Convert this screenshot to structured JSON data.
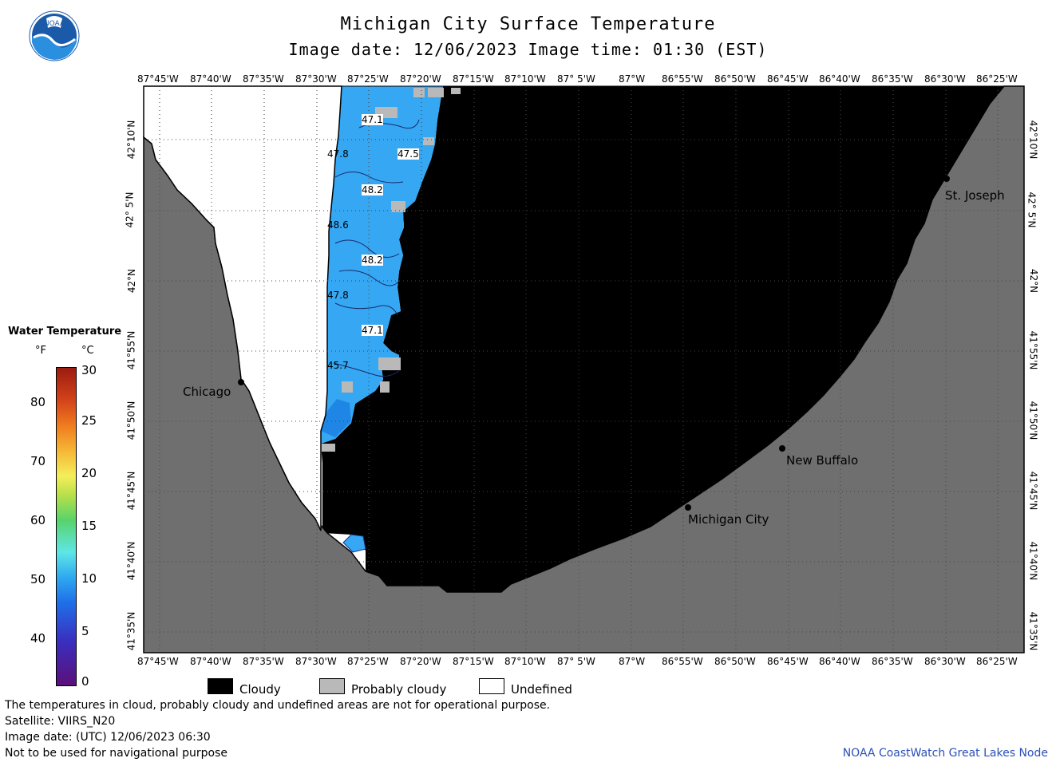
{
  "header": {
    "title": "Michigan City Surface Temperature",
    "subtitle": "Image date: 12/06/2023    Image time: 01:30 (EST)",
    "logo_text": "NOAA"
  },
  "map": {
    "longitude_labels": [
      "87°45'W",
      "87°40'W",
      "87°35'W",
      "87°30'W",
      "87°25'W",
      "87°20'W",
      "87°15'W",
      "87°10'W",
      "87° 5'W",
      "87°W",
      "86°55'W",
      "86°50'W",
      "86°45'W",
      "86°40'W",
      "86°35'W",
      "86°30'W",
      "86°25'W"
    ],
    "latitude_labels": [
      "42°10'N",
      "42° 5'N",
      "42°N",
      "41°55'N",
      "41°50'N",
      "41°45'N",
      "41°40'N",
      "41°35'N"
    ],
    "cities": [
      {
        "name": "Chicago"
      },
      {
        "name": "St. Joseph"
      },
      {
        "name": "New Buffalo"
      },
      {
        "name": "Michigan City"
      }
    ],
    "isotherm_labels": [
      "47.1",
      "47.8",
      "47.5",
      "48.2",
      "48.6",
      "48.2",
      "47.8",
      "47.1",
      "45.7"
    ],
    "colors": {
      "land": "#6f6f6f",
      "cloudy": "#000000",
      "probably_cloudy": "#b9b9b9",
      "undefined": "#ffffff",
      "water_warm": "#35a7f3",
      "water_cool": "#1f86e6"
    }
  },
  "legend": {
    "title": "Water Temperature",
    "unit_f": "°F",
    "unit_c": "°C",
    "f_ticks": [
      "80",
      "70",
      "60",
      "50",
      "40"
    ],
    "c_ticks": [
      "30",
      "25",
      "20",
      "15",
      "10",
      "5",
      "0"
    ]
  },
  "key": {
    "cloudy": "Cloudy",
    "probably_cloudy": "Probably cloudy",
    "undefined": "Undefined"
  },
  "footer": {
    "line1": "The temperatures in cloud, probably cloudy and undefined areas are not for operational purpose.",
    "line2": "Satellite: VIIRS_N20",
    "line3": "Image date: (UTC) 12/06/2023  06:30",
    "line4": "Not to be used for navigational purpose",
    "credit": "NOAA CoastWatch Great Lakes Node"
  }
}
